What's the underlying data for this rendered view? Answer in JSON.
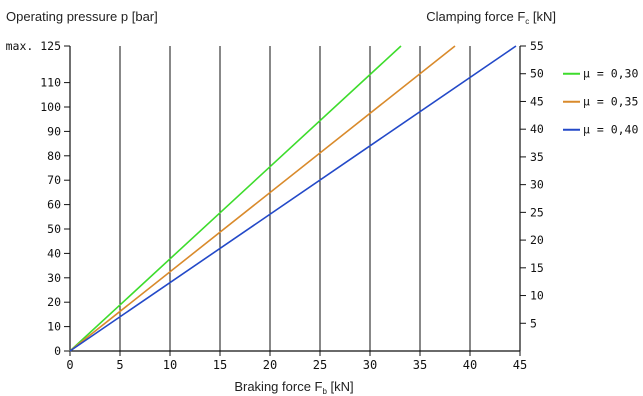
{
  "chart_data": {
    "type": "line",
    "left_axis_label": "Operating pressure p [bar]",
    "right_axis_label": "Clamping force F",
    "right_axis_label_sub": "c",
    "right_axis_label_unit": " [kN]",
    "xlabel": "Braking force F",
    "xlabel_sub": "b",
    "xlabel_unit": " [kN]",
    "xlim": [
      0,
      45
    ],
    "ylim_left": [
      0,
      125
    ],
    "ylim_right": [
      0,
      55
    ],
    "x_ticks": [
      {
        "value": 0,
        "label": "0"
      },
      {
        "value": 5,
        "label": "5"
      },
      {
        "value": 10,
        "label": "10"
      },
      {
        "value": 15,
        "label": "15"
      },
      {
        "value": 20,
        "label": "20"
      },
      {
        "value": 25,
        "label": "25"
      },
      {
        "value": 30,
        "label": "30"
      },
      {
        "value": 35,
        "label": "35"
      },
      {
        "value": 40,
        "label": "40"
      },
      {
        "value": 45,
        "label": "45"
      }
    ],
    "left_ticks": [
      {
        "value": 0,
        "label": "0"
      },
      {
        "value": 10,
        "label": "10"
      },
      {
        "value": 20,
        "label": "20"
      },
      {
        "value": 30,
        "label": "30"
      },
      {
        "value": 40,
        "label": "40"
      },
      {
        "value": 50,
        "label": "50"
      },
      {
        "value": 60,
        "label": "60"
      },
      {
        "value": 70,
        "label": "70"
      },
      {
        "value": 80,
        "label": "80"
      },
      {
        "value": 90,
        "label": "90"
      },
      {
        "value": 100,
        "label": "100"
      },
      {
        "value": 110,
        "label": "110"
      },
      {
        "value": 125,
        "label": "max. 125"
      }
    ],
    "right_ticks": [
      {
        "value": 5,
        "label": "5"
      },
      {
        "value": 10,
        "label": "10"
      },
      {
        "value": 15,
        "label": "15"
      },
      {
        "value": 20,
        "label": "20"
      },
      {
        "value": 25,
        "label": "25"
      },
      {
        "value": 30,
        "label": "30"
      },
      {
        "value": 35,
        "label": "35"
      },
      {
        "value": 40,
        "label": "40"
      },
      {
        "value": 45,
        "label": "45"
      },
      {
        "value": 50,
        "label": "50"
      },
      {
        "value": 55,
        "label": "55"
      }
    ],
    "vertical_grid_at": [
      5,
      10,
      15,
      20,
      25,
      30,
      35,
      40
    ],
    "legend_placement": "right",
    "series": [
      {
        "name": "μ = 0,30",
        "color": "#3ddc2c",
        "x": [
          0,
          33.1
        ],
        "y": [
          0,
          125
        ]
      },
      {
        "name": "μ = 0,35",
        "color": "#d98a2b",
        "x": [
          0,
          38.5
        ],
        "y": [
          0,
          125
        ]
      },
      {
        "name": "μ = 0,40",
        "color": "#2349c8",
        "x": [
          0,
          44.6
        ],
        "y": [
          0,
          125
        ]
      }
    ]
  }
}
